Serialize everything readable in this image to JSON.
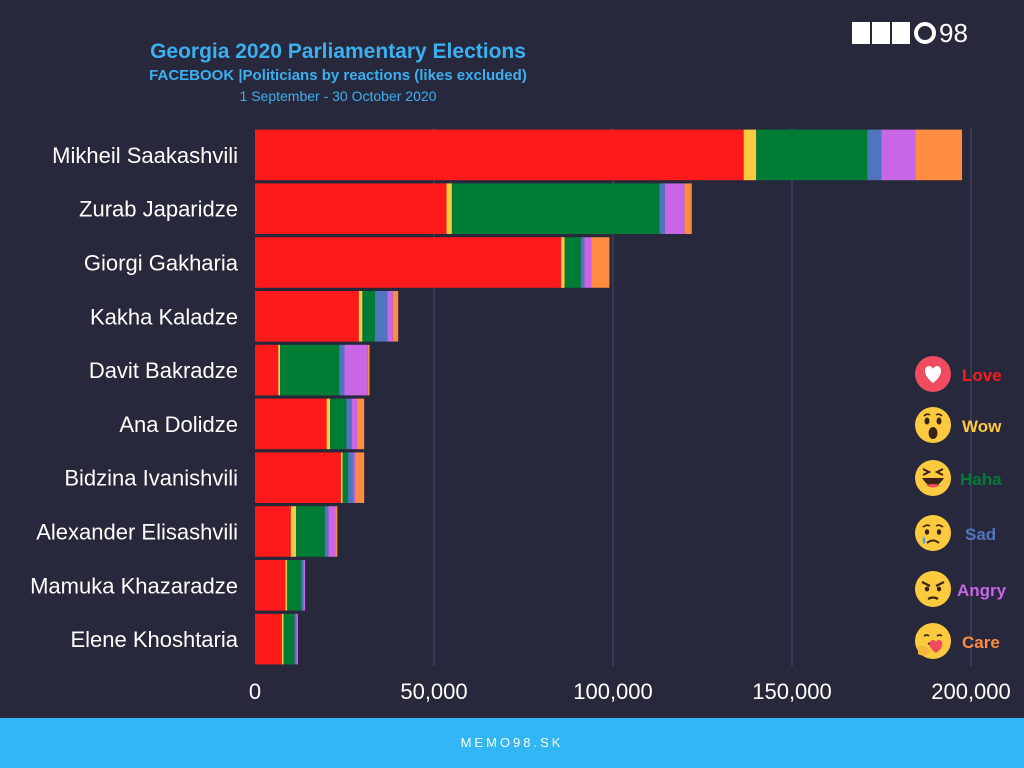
{
  "chart_data": {
    "type": "bar",
    "orientation": "horizontal",
    "stacked": true,
    "title": "Georgia 2020 Parliamentary Elections",
    "subtitle": "FACEBOOK |Politicians by reactions (likes excluded)",
    "date_range": "1 September - 30 October 2020",
    "categories": [
      "Mikheil Saakashvili",
      "Zurab Japaridze",
      "Giorgi Gakharia",
      "Kakha Kaladze",
      "Davit Bakradze",
      "Ana Dolidze",
      "Bidzina Ivanishvili",
      "Alexander Elisashvili",
      "Mamuka Khazaradze",
      "Elene Khoshtaria"
    ],
    "series": [
      {
        "name": "Love",
        "color": "#fe1a1a",
        "values": [
          136500,
          53500,
          85500,
          29000,
          6500,
          20000,
          24000,
          10000,
          8500,
          7500
        ]
      },
      {
        "name": "Wow",
        "color": "#fdca3f",
        "values": [
          3500,
          1500,
          1000,
          1000,
          500,
          1000,
          500,
          1500,
          500,
          500
        ]
      },
      {
        "name": "Haha",
        "color": "#007d35",
        "values": [
          31000,
          58000,
          4500,
          3500,
          16500,
          4500,
          1500,
          8000,
          4000,
          3000
        ]
      },
      {
        "name": "Sad",
        "color": "#4f75bf",
        "values": [
          4000,
          1500,
          1000,
          3500,
          1500,
          1500,
          1500,
          1000,
          500,
          500
        ]
      },
      {
        "name": "Angry",
        "color": "#c866e6",
        "values": [
          9500,
          5500,
          2000,
          1500,
          6500,
          1500,
          500,
          2000,
          500,
          500
        ]
      },
      {
        "name": "Care",
        "color": "#ff8c40",
        "values": [
          13000,
          2000,
          5000,
          1500,
          500,
          2000,
          2500,
          500,
          0,
          0
        ]
      }
    ],
    "xlim": [
      0,
      200000
    ],
    "xticks": [
      0,
      50000,
      100000,
      150000,
      200000
    ],
    "xtick_labels": [
      "0",
      "50,000",
      "100,000",
      "150,000",
      "200,000"
    ],
    "grid": true,
    "legend_position": "right"
  },
  "logo_text": "98",
  "footer_text": "MEMO98.SK",
  "legend_icons": [
    "heart-emoji-icon",
    "surprised-emoji-icon",
    "laughing-emoji-icon",
    "crying-emoji-icon",
    "angry-emoji-icon",
    "hugging-emoji-icon"
  ]
}
